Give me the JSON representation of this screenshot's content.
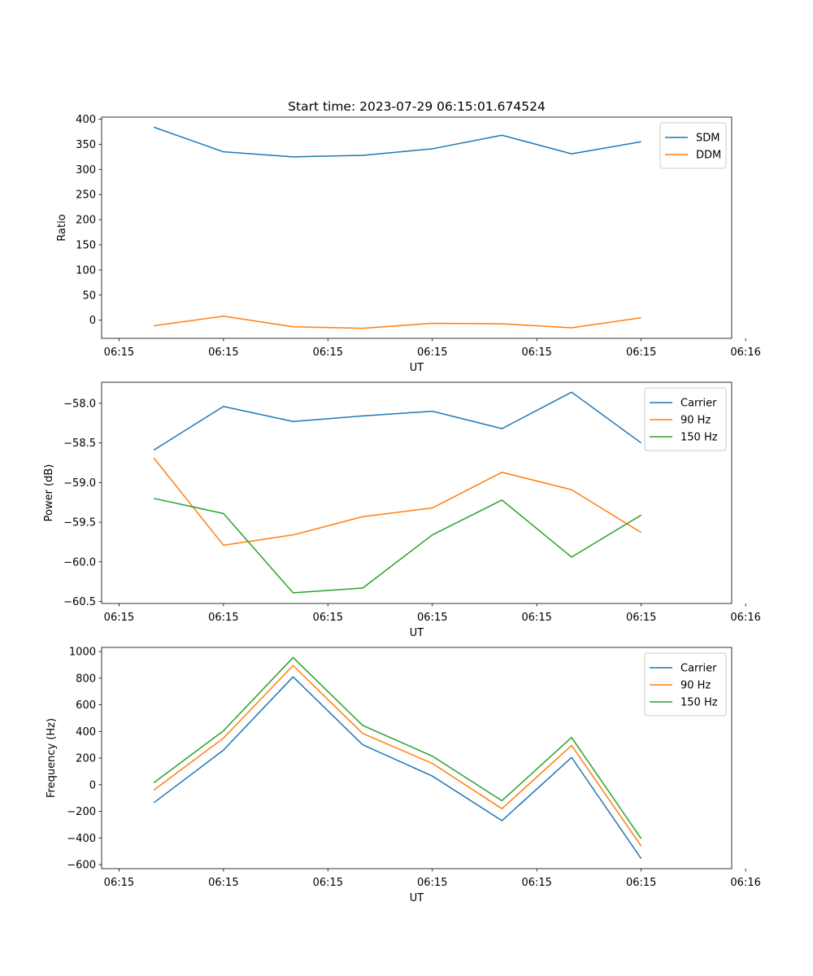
{
  "chart_data": [
    {
      "type": "line",
      "title": "Start time: 2023-07-29 06:15:01.674524",
      "xlabel": "UT",
      "ylabel": "Ratio",
      "x": [
        1,
        2,
        3,
        4,
        5,
        6,
        7,
        8
      ],
      "xlim": [
        0.25,
        9.3
      ],
      "xticks": [
        0.5,
        2,
        3.5,
        5,
        6.5,
        8,
        9.5
      ],
      "xtick_labels": [
        "06:15",
        "06:15",
        "06:15",
        "06:15",
        "06:15",
        "06:15",
        "06:16"
      ],
      "ylim": [
        -36,
        404
      ],
      "yticks": [
        0,
        50,
        100,
        150,
        200,
        250,
        300,
        350,
        400
      ],
      "ytick_labels": [
        "0",
        "50",
        "100",
        "150",
        "200",
        "250",
        "300",
        "350",
        "400"
      ],
      "legend_position": "top-right",
      "series": [
        {
          "name": "SDM",
          "color": "#1f77b4",
          "values": [
            384,
            335,
            325,
            328,
            341,
            368,
            331,
            355
          ]
        },
        {
          "name": "DDM",
          "color": "#ff7f0e",
          "values": [
            -11,
            8,
            -13,
            -16,
            -6,
            -7,
            -15,
            5
          ]
        }
      ]
    },
    {
      "type": "line",
      "title": "",
      "xlabel": "UT",
      "ylabel": "Power (dB)",
      "x": [
        1,
        2,
        3,
        4,
        5,
        6,
        7,
        8
      ],
      "xlim": [
        0.25,
        9.3
      ],
      "xticks": [
        0.5,
        2,
        3.5,
        5,
        6.5,
        8,
        9.5
      ],
      "xtick_labels": [
        "06:15",
        "06:15",
        "06:15",
        "06:15",
        "06:15",
        "06:15",
        "06:16"
      ],
      "ylim": [
        -60.525,
        -57.735
      ],
      "yticks": [
        -60.5,
        -60.0,
        -59.5,
        -59.0,
        -58.5,
        -58.0
      ],
      "ytick_labels": [
        "−60.5",
        "−60.0",
        "−59.5",
        "−59.0",
        "−58.5",
        "−58.0"
      ],
      "legend_position": "top-right",
      "series": [
        {
          "name": "Carrier",
          "color": "#1f77b4",
          "values": [
            -58.59,
            -58.04,
            -58.23,
            -58.16,
            -58.1,
            -58.32,
            -57.86,
            -58.5
          ]
        },
        {
          "name": "90 Hz",
          "color": "#ff7f0e",
          "values": [
            -58.69,
            -59.79,
            -59.66,
            -59.43,
            -59.32,
            -58.87,
            -59.09,
            -59.63
          ]
        },
        {
          "name": "150 Hz",
          "color": "#2ca02c",
          "values": [
            -59.2,
            -59.39,
            -60.39,
            -60.33,
            -59.66,
            -59.22,
            -59.94,
            -59.41
          ]
        }
      ]
    },
    {
      "type": "line",
      "title": "",
      "xlabel": "UT",
      "ylabel": "Frequency (Hz)",
      "x": [
        1,
        2,
        3,
        4,
        5,
        6,
        7,
        8
      ],
      "xlim": [
        0.25,
        9.3
      ],
      "xticks": [
        0.5,
        2,
        3.5,
        5,
        6.5,
        8,
        9.5
      ],
      "xtick_labels": [
        "06:15",
        "06:15",
        "06:15",
        "06:15",
        "06:15",
        "06:15",
        "06:16"
      ],
      "ylim": [
        -630,
        1031
      ],
      "yticks": [
        -600,
        -400,
        -200,
        0,
        200,
        400,
        600,
        800,
        1000
      ],
      "ytick_labels": [
        "−600",
        "−400",
        "−200",
        "0",
        "200",
        "400",
        "600",
        "800",
        "1000"
      ],
      "legend_position": "top-right",
      "series": [
        {
          "name": "Carrier",
          "color": "#1f77b4",
          "values": [
            -135,
            260,
            810,
            300,
            65,
            -270,
            205,
            -555
          ]
        },
        {
          "name": "90 Hz",
          "color": "#ff7f0e",
          "values": [
            -40,
            350,
            895,
            385,
            160,
            -180,
            295,
            -460
          ]
        },
        {
          "name": "150 Hz",
          "color": "#2ca02c",
          "values": [
            15,
            405,
            955,
            445,
            215,
            -120,
            355,
            -405
          ]
        }
      ]
    }
  ]
}
